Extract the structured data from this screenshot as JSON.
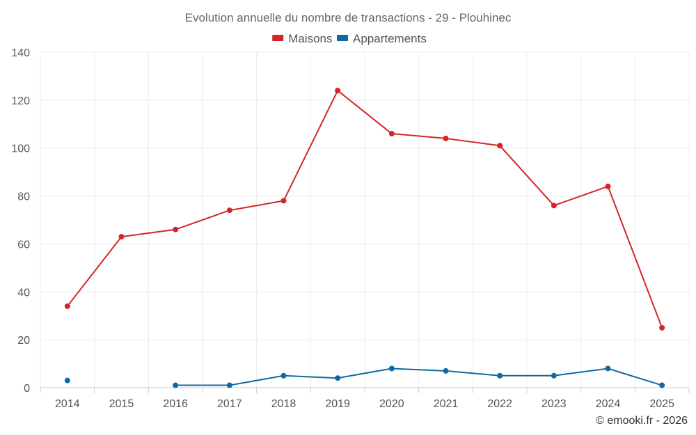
{
  "chart_data": {
    "type": "line",
    "title": "Evolution annuelle du nombre de transactions - 29 - Plouhinec",
    "categories": [
      "2014",
      "2015",
      "2016",
      "2017",
      "2018",
      "2019",
      "2020",
      "2021",
      "2022",
      "2023",
      "2024",
      "2025"
    ],
    "series": [
      {
        "name": "Maisons",
        "color": "#d32626",
        "values": [
          34,
          63,
          66,
          74,
          78,
          124,
          106,
          104,
          101,
          76,
          84,
          25
        ]
      },
      {
        "name": "Appartements",
        "color": "#0f6aa0",
        "values": [
          3,
          null,
          1,
          1,
          5,
          4,
          8,
          7,
          5,
          5,
          8,
          1
        ]
      }
    ],
    "ylim": [
      0,
      140
    ],
    "yticks": [
      0,
      20,
      40,
      60,
      80,
      100,
      120,
      140
    ],
    "grid": true,
    "legend_position": "top-center",
    "credit": "© emooki.fr - 2026"
  }
}
